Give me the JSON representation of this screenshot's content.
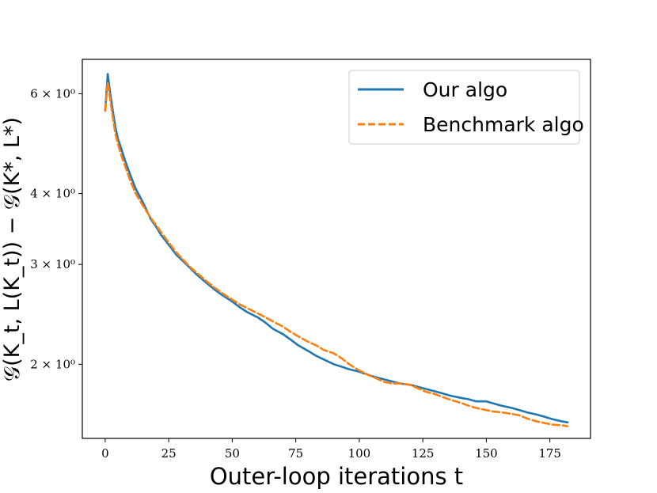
{
  "chart_data": {
    "type": "line",
    "title": "",
    "xlabel": "Outer-loop iterations t",
    "ylabel": "𝒢(K_t, L(K_t)) − 𝒢(K*, L*)",
    "yscale": "log",
    "xlim": [
      -9,
      191
    ],
    "ylim": [
      1.48,
      6.9
    ],
    "grid": false,
    "legend_position": "top-right",
    "x_ticks": [
      0,
      25,
      50,
      75,
      100,
      125,
      150,
      175
    ],
    "y_ticks": [
      {
        "value": 2,
        "label": "2 × 10⁰"
      },
      {
        "value": 3,
        "label": "3 × 10⁰"
      },
      {
        "value": 4,
        "label": "4 × 10⁰"
      },
      {
        "value": 6,
        "label": "6 × 10⁰"
      }
    ],
    "series": [
      {
        "name": "Our algo",
        "color": "#1f77b4",
        "style": "solid",
        "x": [
          0,
          1,
          2,
          3,
          4,
          5,
          6,
          8,
          10,
          12,
          15,
          18,
          20,
          22,
          25,
          28,
          30,
          33,
          36,
          40,
          43,
          46,
          50,
          53,
          56,
          60,
          63,
          66,
          70,
          73,
          76,
          80,
          83,
          86,
          90,
          93,
          96,
          100,
          103,
          106,
          110,
          113,
          116,
          120,
          123,
          126,
          130,
          133,
          136,
          140,
          143,
          146,
          150,
          153,
          156,
          160,
          163,
          166,
          170,
          173,
          176,
          180,
          182
        ],
        "y": [
          5.6,
          6.5,
          6.0,
          5.6,
          5.25,
          5.0,
          4.85,
          4.55,
          4.3,
          4.08,
          3.85,
          3.6,
          3.5,
          3.38,
          3.25,
          3.12,
          3.06,
          2.97,
          2.88,
          2.78,
          2.71,
          2.65,
          2.58,
          2.52,
          2.47,
          2.42,
          2.37,
          2.31,
          2.26,
          2.21,
          2.16,
          2.11,
          2.07,
          2.04,
          2.0,
          1.98,
          1.96,
          1.94,
          1.92,
          1.9,
          1.88,
          1.865,
          1.85,
          1.84,
          1.825,
          1.81,
          1.79,
          1.775,
          1.76,
          1.745,
          1.735,
          1.72,
          1.72,
          1.705,
          1.69,
          1.675,
          1.66,
          1.645,
          1.63,
          1.615,
          1.6,
          1.585,
          1.58
        ]
      },
      {
        "name": "Benchmark algo",
        "color": "#ff7f0e",
        "style": "dashed",
        "x": [
          0,
          1,
          2,
          3,
          4,
          5,
          6,
          8,
          10,
          12,
          15,
          18,
          20,
          22,
          25,
          28,
          30,
          33,
          36,
          40,
          43,
          46,
          50,
          53,
          56,
          60,
          63,
          66,
          70,
          73,
          76,
          80,
          83,
          86,
          90,
          93,
          96,
          100,
          103,
          106,
          110,
          113,
          116,
          120,
          123,
          126,
          130,
          133,
          136,
          140,
          143,
          146,
          150,
          153,
          156,
          160,
          163,
          166,
          170,
          173,
          176,
          180,
          182
        ],
        "y": [
          5.6,
          6.3,
          5.85,
          5.45,
          5.1,
          4.9,
          4.72,
          4.45,
          4.2,
          4.0,
          3.8,
          3.62,
          3.52,
          3.42,
          3.28,
          3.15,
          3.08,
          2.98,
          2.9,
          2.8,
          2.73,
          2.67,
          2.6,
          2.55,
          2.51,
          2.46,
          2.42,
          2.38,
          2.33,
          2.28,
          2.24,
          2.19,
          2.16,
          2.12,
          2.09,
          2.05,
          2.0,
          1.95,
          1.92,
          1.895,
          1.86,
          1.85,
          1.85,
          1.84,
          1.815,
          1.79,
          1.77,
          1.75,
          1.73,
          1.71,
          1.69,
          1.675,
          1.66,
          1.65,
          1.645,
          1.635,
          1.625,
          1.605,
          1.585,
          1.575,
          1.565,
          1.56,
          1.555
        ]
      }
    ]
  }
}
